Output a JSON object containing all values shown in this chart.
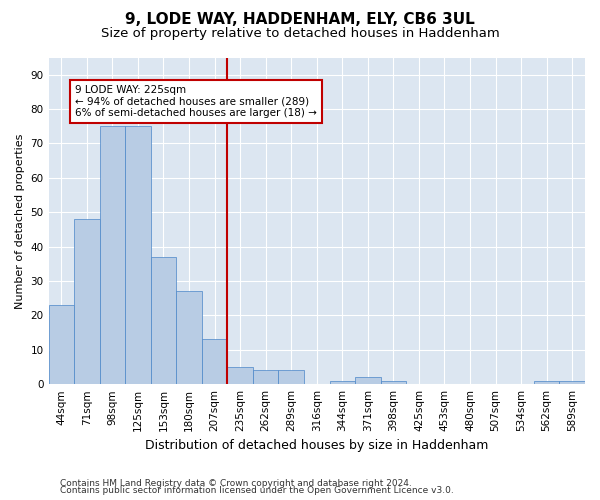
{
  "title1": "9, LODE WAY, HADDENHAM, ELY, CB6 3UL",
  "title2": "Size of property relative to detached houses in Haddenham",
  "xlabel": "Distribution of detached houses by size in Haddenham",
  "ylabel": "Number of detached properties",
  "categories": [
    "44sqm",
    "71sqm",
    "98sqm",
    "125sqm",
    "153sqm",
    "180sqm",
    "207sqm",
    "235sqm",
    "262sqm",
    "289sqm",
    "316sqm",
    "344sqm",
    "371sqm",
    "398sqm",
    "425sqm",
    "453sqm",
    "480sqm",
    "507sqm",
    "534sqm",
    "562sqm",
    "589sqm"
  ],
  "values": [
    23,
    48,
    75,
    75,
    37,
    27,
    13,
    5,
    4,
    4,
    0,
    1,
    2,
    1,
    0,
    0,
    0,
    0,
    0,
    1,
    1
  ],
  "bar_color": "#b8cce4",
  "bar_edge_color": "#4a86c8",
  "bar_width": 1.0,
  "vline_color": "#c00000",
  "annotation_line1": "9 LODE WAY: 225sqm",
  "annotation_line2": "← 94% of detached houses are smaller (289)",
  "annotation_line3": "6% of semi-detached houses are larger (18) →",
  "annotation_box_color": "#ffffff",
  "annotation_box_edge_color": "#c00000",
  "ylim": [
    0,
    95
  ],
  "yticks": [
    0,
    10,
    20,
    30,
    40,
    50,
    60,
    70,
    80,
    90
  ],
  "plot_bg_color": "#dce6f1",
  "footer1": "Contains HM Land Registry data © Crown copyright and database right 2024.",
  "footer2": "Contains public sector information licensed under the Open Government Licence v3.0.",
  "title1_fontsize": 11,
  "title2_fontsize": 9.5,
  "xlabel_fontsize": 9,
  "ylabel_fontsize": 8,
  "tick_fontsize": 7.5,
  "annotation_fontsize": 7.5,
  "footer_fontsize": 6.5
}
